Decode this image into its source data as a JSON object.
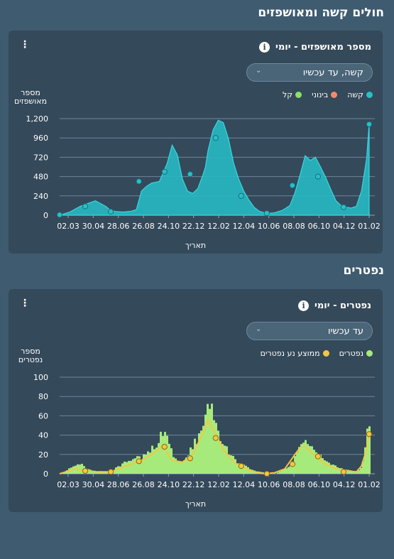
{
  "sections": {
    "severe_title": "חולים קשה ומאושפזים",
    "deaths_title": "נפטרים"
  },
  "colors": {
    "background": "#3f5b70",
    "card": "#34495a",
    "severe": "#27c0c9",
    "moderate": "#f08c6c",
    "mild": "#8ae06a",
    "deaths": "#a7ea7c",
    "avg": "#f2c744"
  },
  "icons": {
    "info": "info-icon",
    "menu": "kebab-menu-icon",
    "dropdown": "chevron-down-icon"
  },
  "chart_data": [
    {
      "type": "area",
      "title": "מספר מאושפזים - יומי",
      "dropdown": "קשה, עד עכשיו",
      "ylabel": "מספר מאושפזים",
      "xlabel": "תאריך",
      "ylim": [
        0,
        1200
      ],
      "yticks": [
        "0",
        "240",
        "480",
        "720",
        "960",
        "1,200"
      ],
      "xticks": [
        "02.03",
        "30.04",
        "28.06",
        "26.08",
        "24.10",
        "22.12",
        "12.02",
        "12.04",
        "10.06",
        "08.08",
        "06.10",
        "04.12",
        "01.02"
      ],
      "legend": [
        "קשה",
        "בינוני",
        "קל"
      ],
      "series": [
        {
          "name": "קשה",
          "x": [
            0,
            2,
            4,
            7,
            9,
            10,
            11,
            12.5,
            14,
            15,
            16,
            17,
            18,
            19.5,
            21,
            22,
            23,
            24,
            25,
            26,
            27,
            28,
            28.5,
            29,
            30,
            31,
            32,
            33,
            34,
            35,
            36,
            37,
            38,
            39,
            40,
            41,
            42,
            43.5,
            45,
            46,
            47,
            48,
            49,
            50,
            51,
            52,
            53,
            54,
            55,
            56,
            57,
            58,
            59,
            60,
            60.5
          ],
          "values": [
            0,
            40,
            110,
            180,
            110,
            60,
            45,
            40,
            50,
            70,
            300,
            360,
            400,
            420,
            640,
            870,
            750,
            450,
            300,
            270,
            330,
            500,
            600,
            800,
            1060,
            1180,
            1150,
            950,
            650,
            450,
            300,
            190,
            100,
            50,
            30,
            25,
            30,
            60,
            120,
            280,
            500,
            740,
            680,
            720,
            600,
            470,
            320,
            180,
            120,
            100,
            90,
            110,
            300,
            700,
            1130
          ]
        }
      ],
      "markers": [
        {
          "x": 0,
          "y": 5
        },
        {
          "x": 5,
          "y": 110
        },
        {
          "x": 10,
          "y": 45
        },
        {
          "x": 15.5,
          "y": 420
        },
        {
          "x": 20.5,
          "y": 540
        },
        {
          "x": 25.5,
          "y": 510
        },
        {
          "x": 30.5,
          "y": 960
        },
        {
          "x": 35.5,
          "y": 240
        },
        {
          "x": 40.5,
          "y": 25
        },
        {
          "x": 45.5,
          "y": 370
        },
        {
          "x": 50.5,
          "y": 480
        },
        {
          "x": 55.5,
          "y": 100
        },
        {
          "x": 60.5,
          "y": 1130
        }
      ]
    },
    {
      "type": "bar",
      "title": "נפטרים - יומי",
      "dropdown": "עד עכשיו",
      "ylabel": "מספר נפטרים",
      "xlabel": "תאריך",
      "ylim": [
        0,
        100
      ],
      "yticks": [
        "0",
        "20",
        "40",
        "60",
        "80",
        "100"
      ],
      "xticks": [
        "02.03",
        "30.04",
        "28.06",
        "26.08",
        "24.10",
        "22.12",
        "12.02",
        "12.04",
        "10.06",
        "08.08",
        "06.10",
        "04.12",
        "01.02"
      ],
      "legend": [
        "נפטרים",
        "ממוצע נע נפטרים"
      ],
      "series": [
        {
          "name": "נפטרים",
          "x": [
            0,
            2,
            4,
            5,
            7,
            9,
            10,
            12,
            14,
            16,
            17,
            19,
            20,
            21,
            22,
            23,
            24,
            25,
            26,
            27,
            28,
            29,
            30,
            31,
            32,
            33,
            34,
            36,
            38,
            40,
            42,
            44,
            45,
            46,
            47,
            48,
            49,
            50,
            51,
            52,
            54,
            56,
            58,
            59,
            60,
            60.5
          ],
          "values": [
            0,
            6,
            10,
            5,
            3,
            2,
            3,
            10,
            15,
            17,
            22,
            32,
            46,
            35,
            18,
            12,
            14,
            20,
            30,
            38,
            55,
            72,
            60,
            42,
            30,
            22,
            14,
            8,
            3,
            1,
            0,
            5,
            10,
            20,
            28,
            33,
            30,
            25,
            20,
            12,
            7,
            4,
            2,
            8,
            46,
            44
          ]
        },
        {
          "name": "ממוצע נע נפטרים",
          "x": [
            0,
            3,
            5,
            7,
            10,
            13,
            16,
            18,
            20,
            22,
            24,
            26,
            28,
            29,
            30,
            32,
            34,
            36,
            38,
            40,
            42,
            44,
            46,
            47,
            48,
            50,
            52,
            54,
            56,
            58,
            59,
            60,
            60.5
          ],
          "values": [
            0,
            5,
            3,
            2,
            2,
            8,
            14,
            20,
            28,
            14,
            12,
            20,
            42,
            56,
            46,
            25,
            12,
            6,
            2,
            0,
            1,
            5,
            20,
            27,
            28,
            18,
            10,
            5,
            3,
            2,
            8,
            25,
            41
          ]
        }
      ],
      "markers": [
        {
          "x": 5,
          "y": 3
        },
        {
          "x": 10,
          "y": 2
        },
        {
          "x": 15.5,
          "y": 13
        },
        {
          "x": 20.5,
          "y": 28
        },
        {
          "x": 25.5,
          "y": 16
        },
        {
          "x": 30.5,
          "y": 37
        },
        {
          "x": 35.5,
          "y": 8
        },
        {
          "x": 40.5,
          "y": 0
        },
        {
          "x": 45.5,
          "y": 10
        },
        {
          "x": 50.5,
          "y": 18
        },
        {
          "x": 55.5,
          "y": 2
        },
        {
          "x": 60.5,
          "y": 41
        }
      ]
    }
  ]
}
